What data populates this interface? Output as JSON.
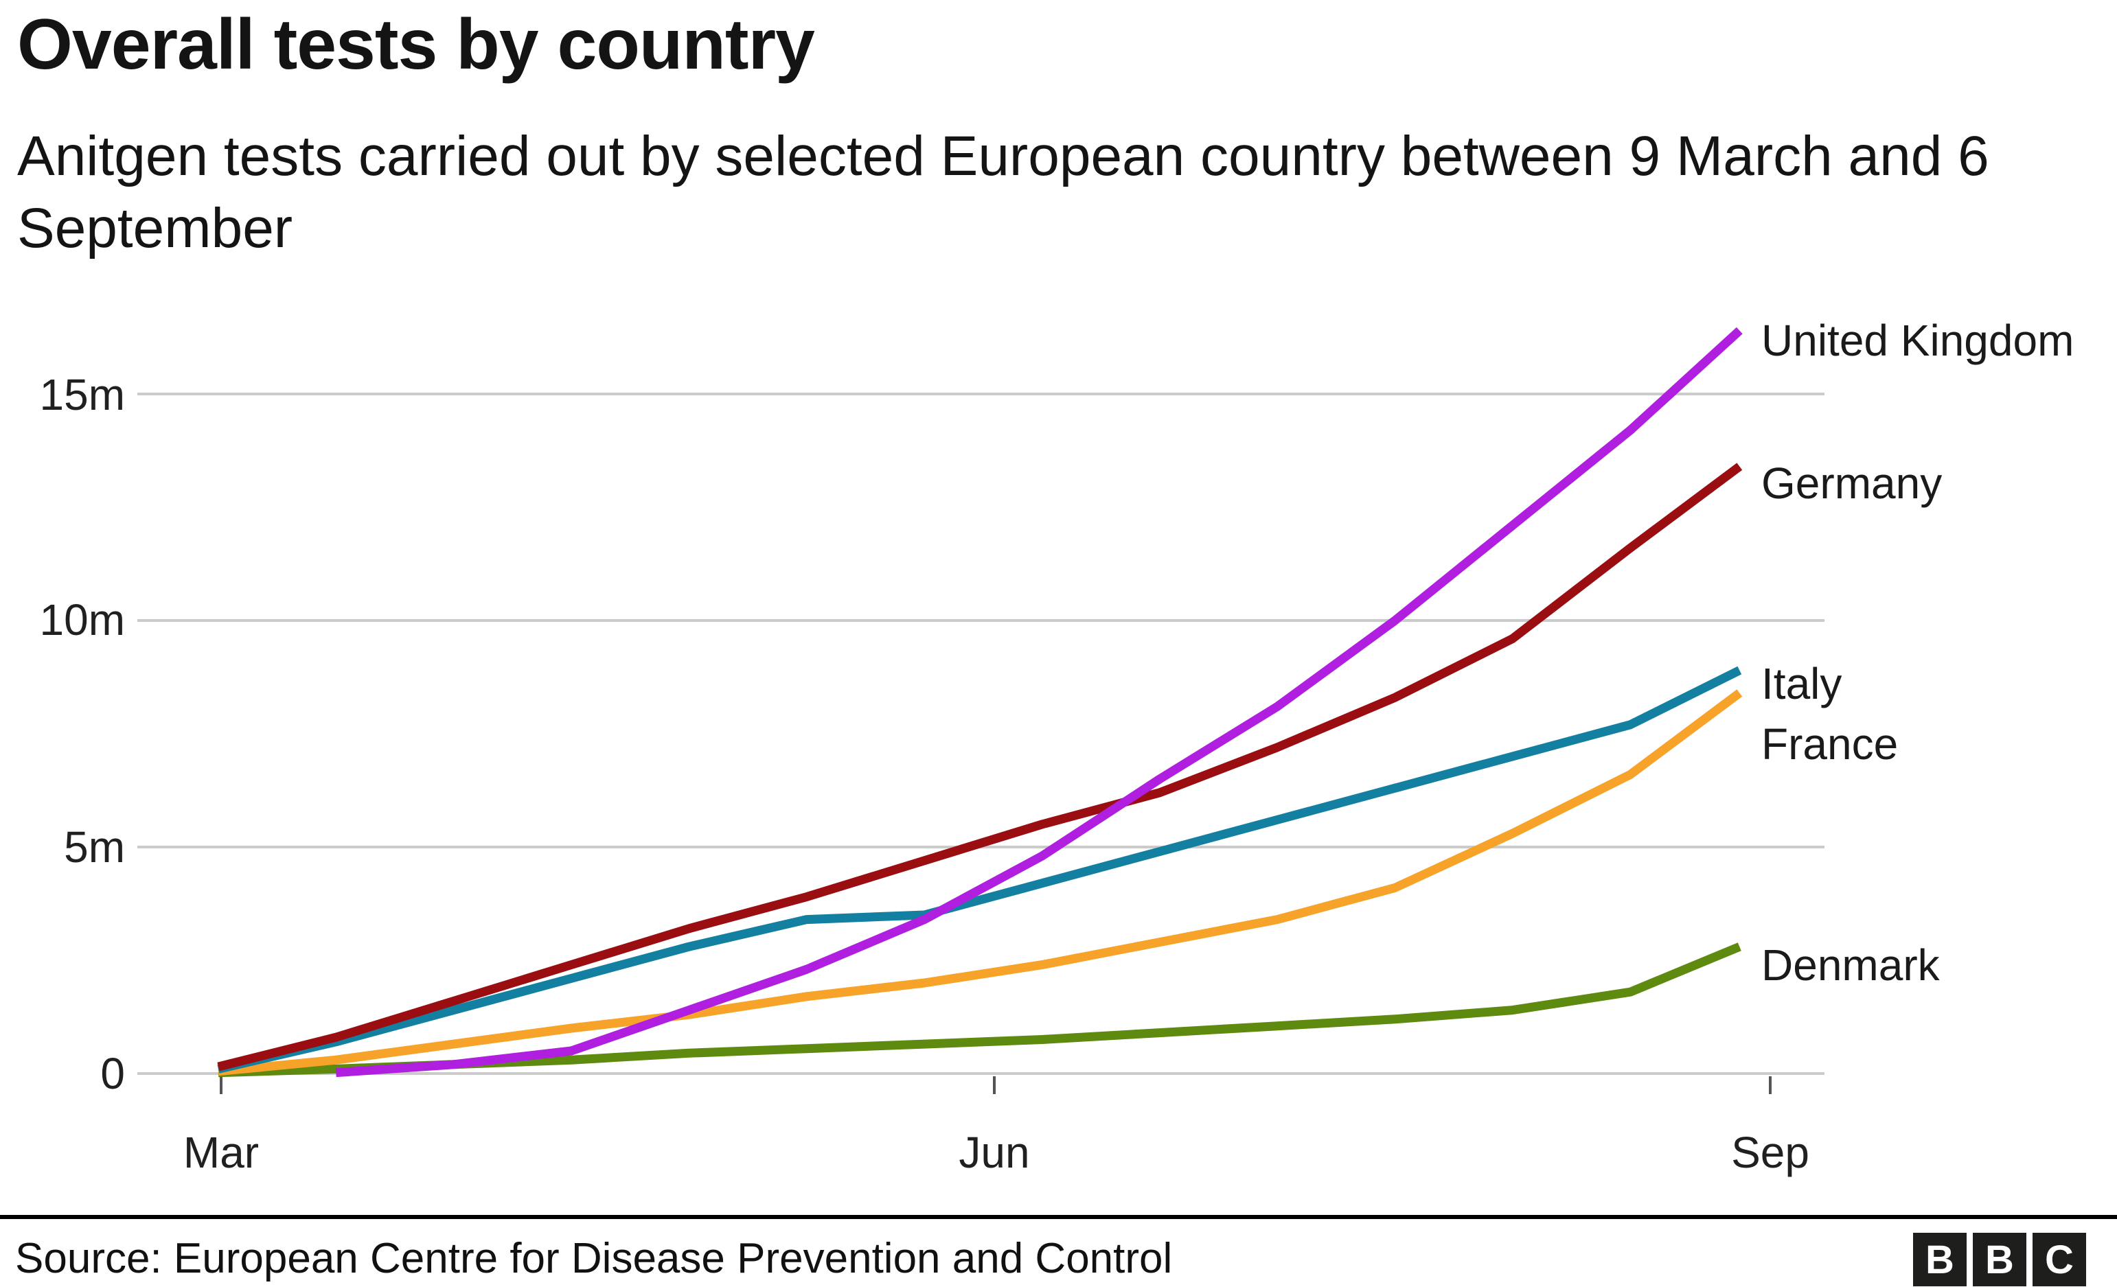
{
  "header": {
    "title": "Overall tests by country",
    "subtitle": "Anitgen tests carried out by selected European country between 9 March and 6 September"
  },
  "chart_data": {
    "type": "line",
    "title": "Overall tests by country",
    "subtitle": "Anitgen tests carried out by selected European country between 9 March and 6 September",
    "unit": "tests (millions)",
    "ylim": [
      0,
      16.5
    ],
    "grid": true,
    "legend_position": "right-inline-labels",
    "x_dates": [
      "9 Mar",
      "23 Mar",
      "6 Apr",
      "20 Apr",
      "4 May",
      "18 May",
      "1 Jun",
      "15 Jun",
      "29 Jun",
      "13 Jul",
      "27 Jul",
      "10 Aug",
      "24 Aug",
      "6 Sep"
    ],
    "x_days": [
      0,
      14,
      28,
      42,
      56,
      70,
      84,
      98,
      112,
      126,
      140,
      154,
      168,
      181
    ],
    "yticks": [
      {
        "label": "15m",
        "value": 15
      },
      {
        "label": "10m",
        "value": 10
      },
      {
        "label": "5m",
        "value": 5
      },
      {
        "label": "0",
        "value": 0
      }
    ],
    "xticks": [
      {
        "label": "Mar"
      },
      {
        "label": "Jun"
      },
      {
        "label": "Sep"
      }
    ],
    "series": [
      {
        "name": "Denmark",
        "color": "#5e8a10",
        "values": [
          0.02,
          0.1,
          0.2,
          0.3,
          0.45,
          0.55,
          0.65,
          0.75,
          0.9,
          1.05,
          1.2,
          1.4,
          1.8,
          2.8
        ]
      },
      {
        "name": "France",
        "color": "#f7a229",
        "values": [
          0.05,
          0.3,
          0.65,
          1.0,
          1.3,
          1.7,
          2.0,
          2.4,
          2.9,
          3.4,
          4.1,
          5.3,
          6.6,
          8.4
        ]
      },
      {
        "name": "Italy",
        "color": "#1380a1",
        "values": [
          0.1,
          0.7,
          1.4,
          2.1,
          2.8,
          3.4,
          3.5,
          4.2,
          4.9,
          5.6,
          6.3,
          7.0,
          7.7,
          8.9
        ]
      },
      {
        "name": "Germany",
        "color": "#9a0e11",
        "values": [
          0.15,
          0.8,
          1.6,
          2.4,
          3.2,
          3.9,
          4.7,
          5.5,
          6.2,
          7.2,
          8.3,
          9.6,
          11.6,
          13.4
        ]
      },
      {
        "name": "United Kingdom",
        "color": "#b01fe0",
        "values": [
          null,
          0.02,
          0.2,
          0.5,
          1.4,
          2.3,
          3.4,
          4.8,
          6.5,
          8.1,
          10.0,
          12.1,
          14.2,
          16.4
        ]
      }
    ],
    "gridline_color": "#cbcbcb"
  },
  "labels": {
    "uk": "United Kingdom",
    "germany": "Germany",
    "italy": "Italy",
    "france": "France",
    "denmark": "Denmark"
  },
  "footer": {
    "source": "Source: European Centre for Disease Prevention and Control",
    "logo": [
      "B",
      "B",
      "C"
    ]
  }
}
